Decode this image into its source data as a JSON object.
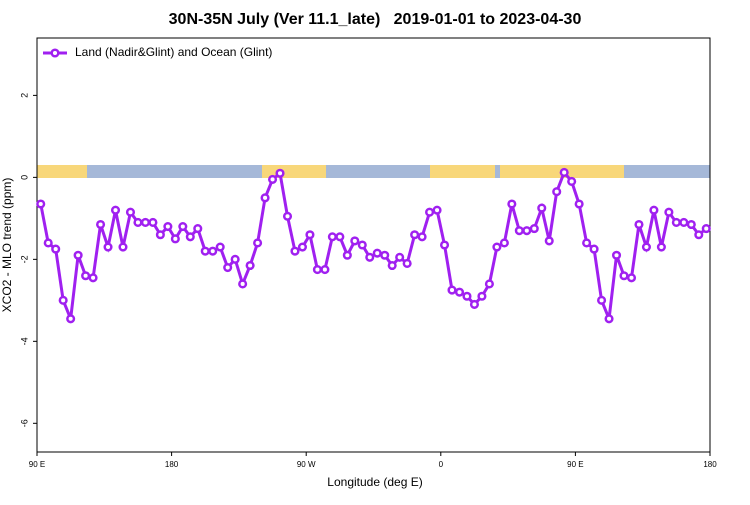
{
  "chart_data": {
    "type": "line",
    "title": "30N-35N July (Ver 11.1_late)   2019-01-01 to 2023-04-30",
    "x_label": "Longitude (deg E)",
    "y_label": "XCO2 - MLO trend (ppm)",
    "legend": "top-left",
    "xlim": [
      90,
      540
    ],
    "ylim": [
      -6.7,
      3.4
    ],
    "xticks": [
      {
        "value": 90,
        "label": "90 E"
      },
      180,
      {
        "value": 270,
        "label": "90 W"
      },
      {
        "value": 360,
        "label": "0"
      },
      {
        "value": 450,
        "label": "90 E"
      },
      {
        "value": 540,
        "label": "180"
      }
    ],
    "yticks": [
      -6,
      -4,
      -2,
      0,
      2
    ],
    "x": [
      92.5,
      97.5,
      102.5,
      107.5,
      112.5,
      117.5,
      122.5,
      127.5,
      132.5,
      137.5,
      142.5,
      147.5,
      152.5,
      157.5,
      162.5,
      167.5,
      172.5,
      177.5,
      182.5,
      187.5,
      192.5,
      197.5,
      202.5,
      207.5,
      212.5,
      217.5,
      222.5,
      227.5,
      232.5,
      237.5,
      242.5,
      247.5,
      252.5,
      257.5,
      262.5,
      267.5,
      272.5,
      277.5,
      282.5,
      287.5,
      292.5,
      297.5,
      302.5,
      307.5,
      312.5,
      317.5,
      322.5,
      327.5,
      332.5,
      337.5,
      342.5,
      347.5,
      352.5,
      357.5,
      362.5,
      367.5,
      372.5,
      377.5,
      382.5,
      387.5,
      392.5,
      397.5,
      402.5,
      407.5,
      412.5,
      417.5,
      422.5,
      427.5,
      432.5,
      437.5,
      442.5,
      447.5,
      452.5,
      457.5,
      462.5,
      467.5,
      472.5,
      477.5,
      482.5,
      487.5,
      492.5,
      497.5,
      502.5,
      507.5,
      512.5,
      517.5,
      522.5,
      527.5,
      532.5,
      537.5
    ],
    "series": [
      {
        "name": "Land (Nadir&Glint) and Ocean (Glint)",
        "color": "#a020f0",
        "values": [
          -0.65,
          -1.6,
          -1.75,
          -3.0,
          -3.45,
          -1.9,
          -2.4,
          -2.45,
          -1.15,
          -1.7,
          -0.8,
          -1.7,
          -0.85,
          -1.1,
          -1.1,
          -1.1,
          -1.4,
          -1.2,
          -1.5,
          -1.2,
          -1.45,
          -1.25,
          -1.8,
          -1.8,
          -1.7,
          -2.2,
          -2.0,
          -2.6,
          -2.15,
          -1.6,
          -0.5,
          -0.05,
          0.1,
          -0.95,
          -1.8,
          -1.7,
          -1.4,
          -2.25,
          -2.25,
          -1.45,
          -1.45,
          -1.9,
          -1.55,
          -1.65,
          -1.95,
          -1.85,
          -1.9,
          -2.15,
          -1.95,
          -2.1,
          -1.4,
          -1.45,
          -0.85,
          -0.8,
          -1.65,
          -2.75,
          -2.8,
          -2.9,
          -3.1,
          -2.9,
          -2.6,
          -1.7,
          -1.6,
          -0.65,
          -1.3,
          -1.3,
          -1.25,
          -0.75,
          -1.55,
          -0.35,
          0.12,
          -0.1,
          -0.65,
          -1.6,
          -1.75,
          -3.0,
          -3.45,
          -1.9,
          -2.4,
          -2.45,
          -1.15,
          -1.7,
          -0.8,
          -1.7,
          -0.85,
          -1.1,
          -1.1,
          -1.15,
          -1.4,
          -1.25
        ]
      }
    ]
  }
}
